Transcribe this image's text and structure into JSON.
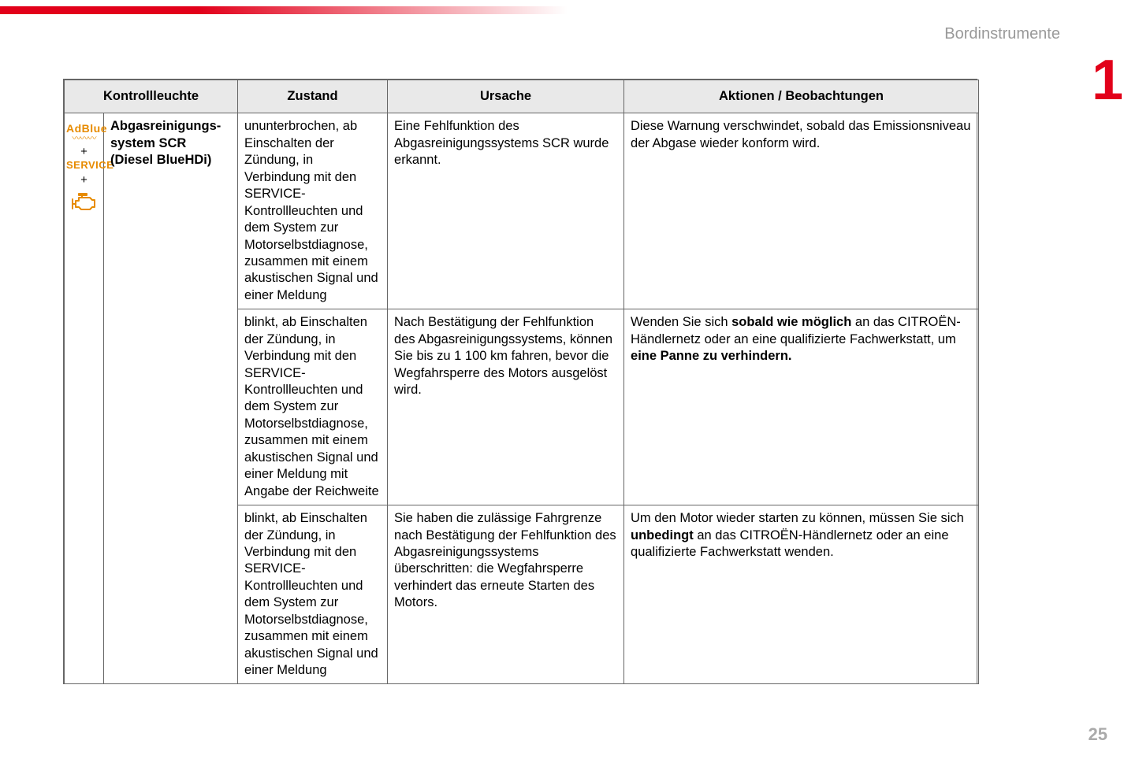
{
  "section_title": "Bordinstrumente",
  "chapter_number": "1",
  "page_number": "25",
  "icon": {
    "adblue": "AdBlue",
    "plus": "+",
    "service": "SERVICE",
    "engine_color": "#e78b00"
  },
  "table": {
    "headers": {
      "kontroll": "Kontrollleuchte",
      "zustand": "Zustand",
      "ursache": "Ursache",
      "aktion": "Aktionen / Beobachtungen"
    },
    "system_name_line1": "Abgasreinigungs-",
    "system_name_line2": "system SCR",
    "system_name_line3": "(Diesel BlueHDi)",
    "rows": [
      {
        "zustand": "ununterbrochen, ab Einschalten der Zündung, in Verbindung mit den SERVICE-Kontrollleuchten und dem System zur Motorselbstdiagnose, zusammen mit einem akustischen Signal und einer Meldung",
        "ursache": "Eine Fehlfunktion des Abgasreinigungssystems SCR wurde erkannt.",
        "aktion_html": "Diese Warnung verschwindet, sobald das Emissionsniveau der Abgase wieder konform wird."
      },
      {
        "zustand": "blinkt, ab Einschalten der Zündung, in Verbindung mit den SERVICE-Kontrollleuchten und dem System zur Motorselbstdiagnose, zusammen mit einem akustischen Signal und einer Meldung mit Angabe der Reichweite",
        "ursache": "Nach Bestätigung der Fehlfunktion des Abgasreinigungssystems, können Sie bis zu 1 100 km fahren, bevor die Wegfahrsperre des Motors ausgelöst wird.",
        "aktion_html": "Wenden Sie sich <b>sobald wie möglich</b> an das CITROËN-Händlernetz oder an eine qualifizierte Fachwerkstatt, um <b>eine Panne zu verhindern.</b>"
      },
      {
        "zustand": "blinkt, ab Einschalten der Zündung, in Verbindung mit den SERVICE-Kontrollleuchten und dem System zur Motorselbstdiagnose, zusammen mit einem akustischen Signal und einer Meldung",
        "ursache": "Sie haben die zulässige Fahrgrenze nach Bestätigung der Fehlfunktion des Abgasreinigungssystems überschritten: die Wegfahrsperre verhindert das erneute Starten des Motors.",
        "aktion_html": "Um den Motor wieder starten zu können, müssen Sie sich <b>unbedingt</b> an das CITROËN-Händlernetz oder an eine qualifizierte Fachwerkstatt wenden."
      }
    ]
  }
}
